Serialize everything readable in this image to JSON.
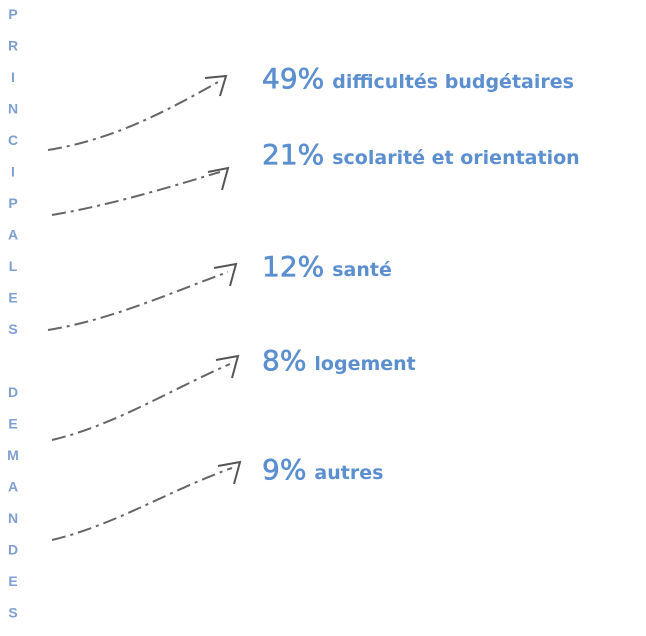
{
  "title": "PRINCIPALES DEMANDES",
  "items": [
    {
      "percent": "49%",
      "label": "difficultés budgétaires"
    },
    {
      "percent": "21%",
      "label": "scolarité et orientation"
    },
    {
      "percent": "12%",
      "label": "santé"
    },
    {
      "percent": "8%",
      "label": "logement"
    },
    {
      "percent": "9%",
      "label": "autres"
    }
  ]
}
